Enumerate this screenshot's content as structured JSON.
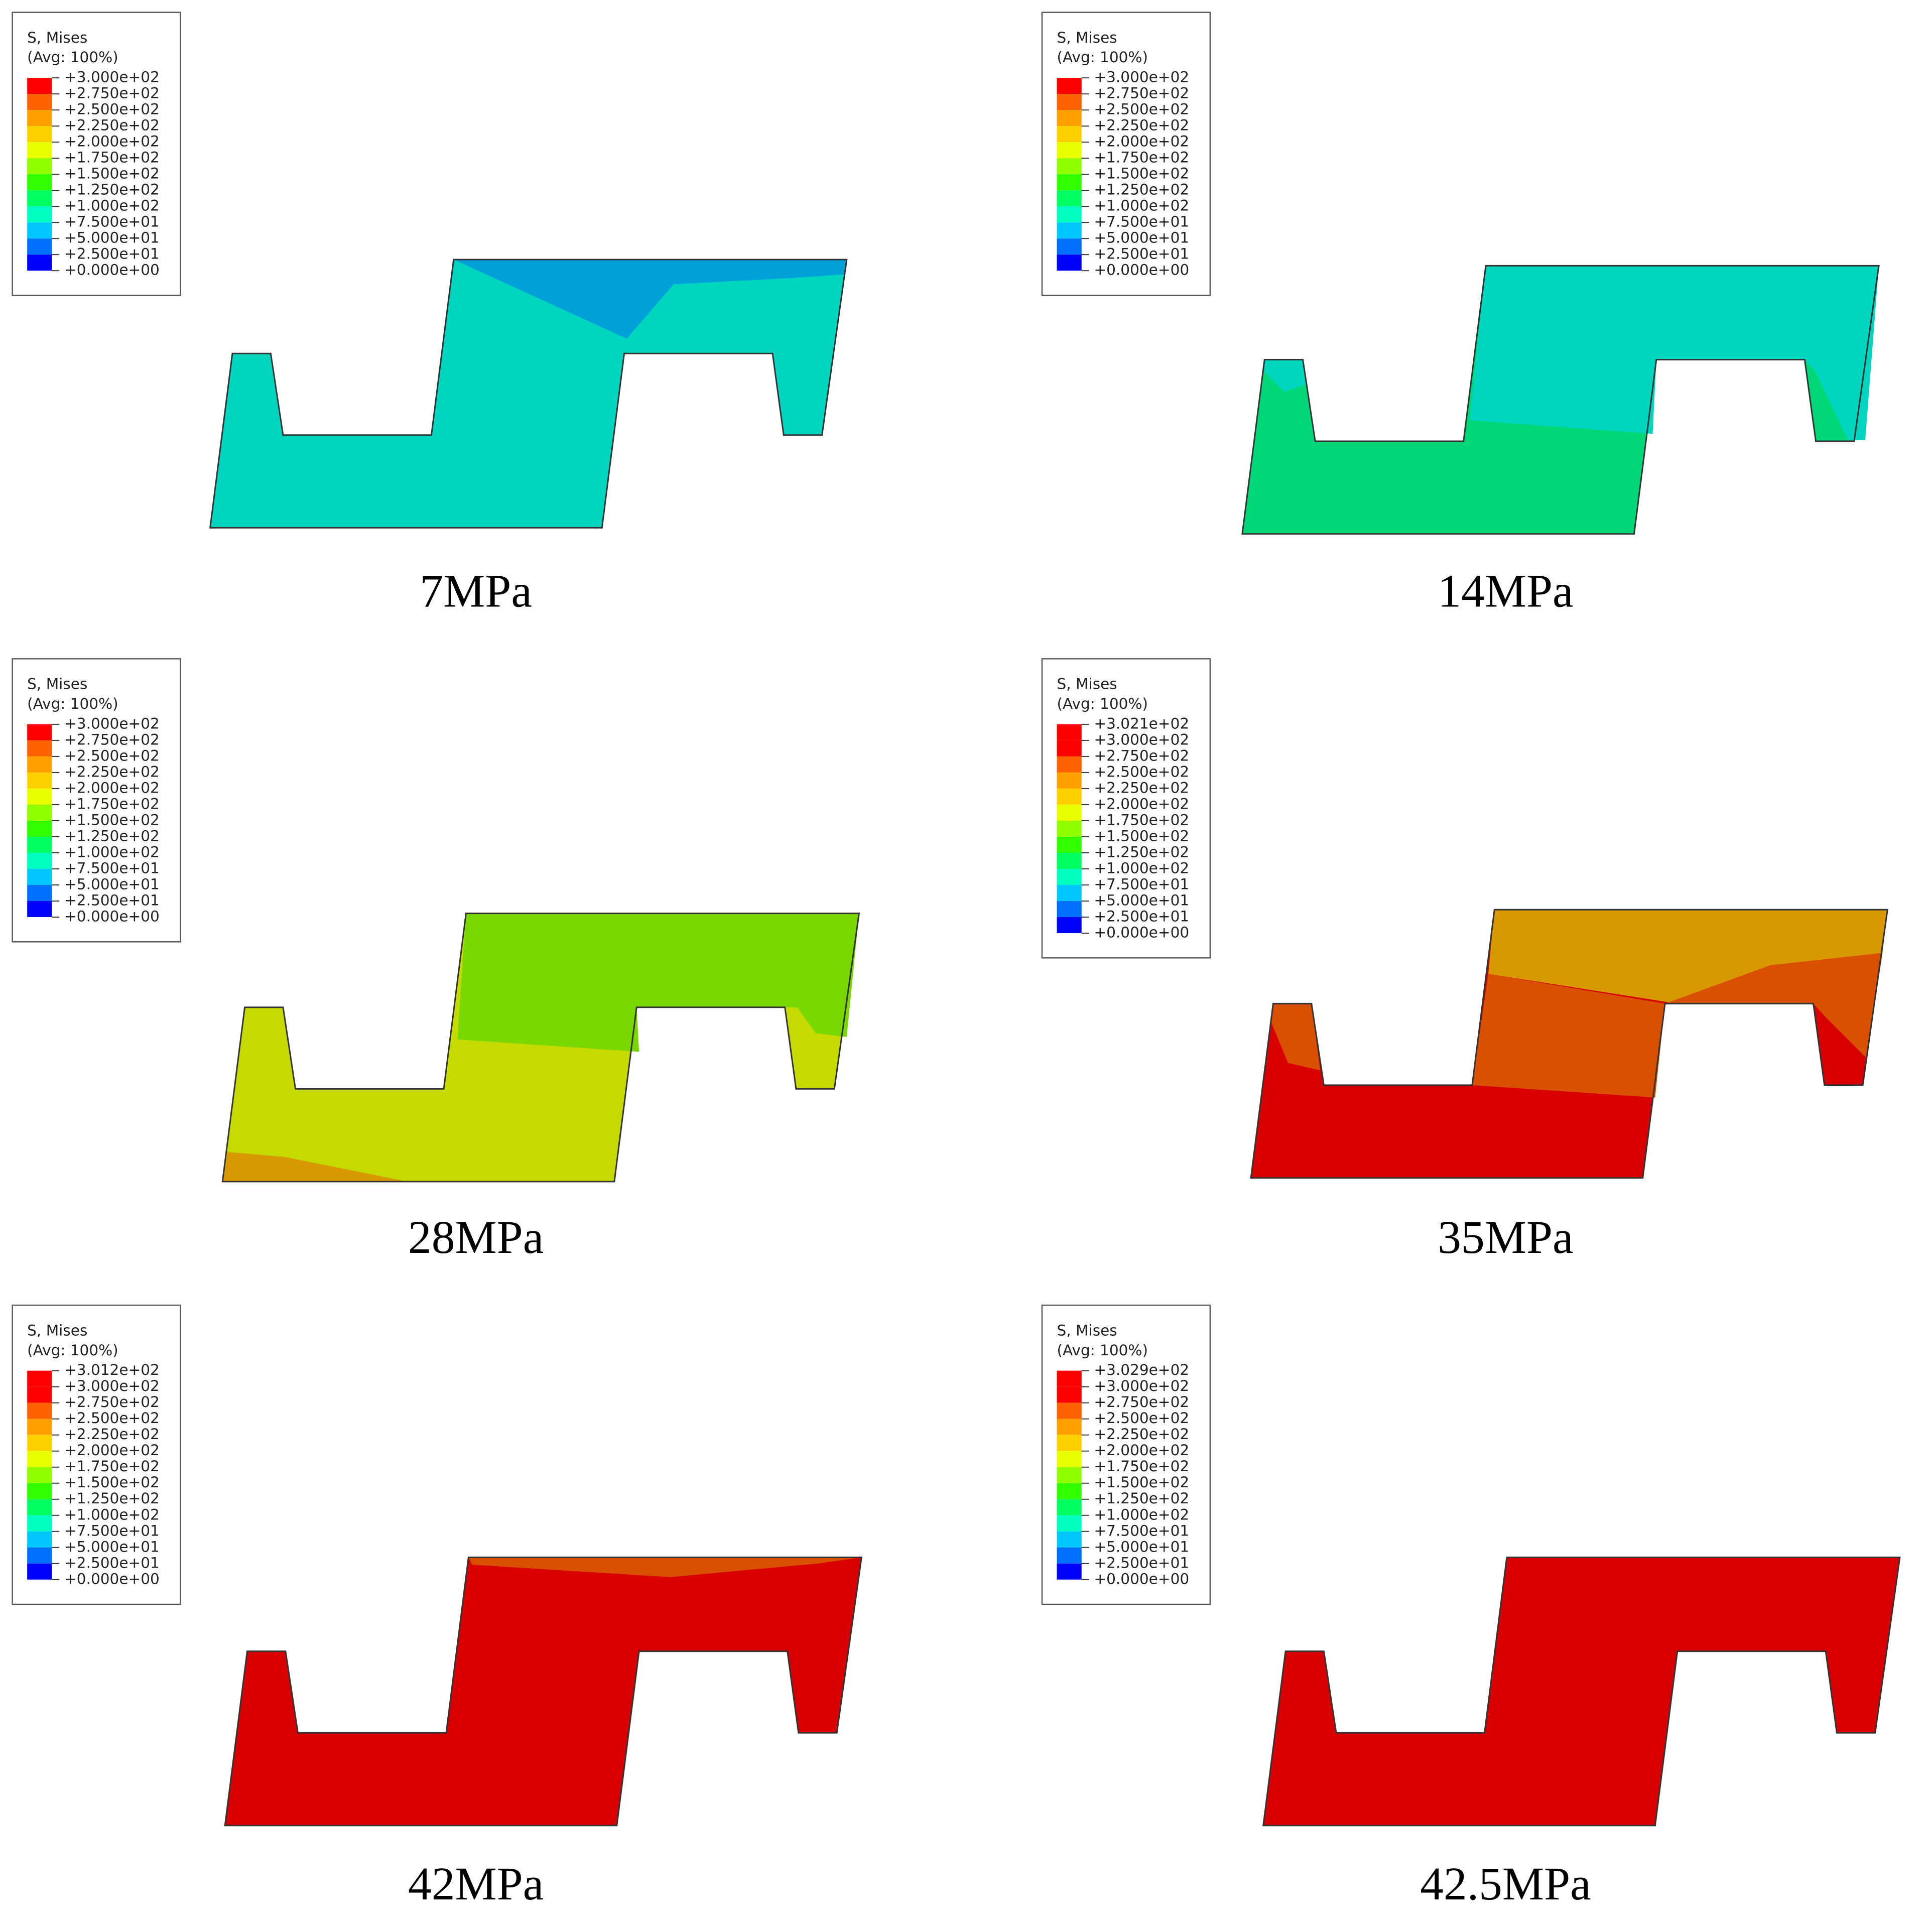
{
  "panels": [
    {
      "legend_title": "S, Mises",
      "legend_subtitle": "(Avg: 100%)",
      "legend_labels": [
        "+3.000e+02",
        "+2.750e+02",
        "+2.500e+02",
        "+2.250e+02",
        "+2.000e+02",
        "+1.750e+02",
        "+1.500e+02",
        "+1.250e+02",
        "+1.000e+02",
        "+7.500e+01",
        "+5.000e+01",
        "+2.500e+01",
        "+0.000e+00"
      ],
      "caption": "7MPa"
    },
    {
      "legend_title": "S, Mises",
      "legend_subtitle": "(Avg: 100%)",
      "legend_labels": [
        "+3.000e+02",
        "+2.750e+02",
        "+2.500e+02",
        "+2.250e+02",
        "+2.000e+02",
        "+1.750e+02",
        "+1.500e+02",
        "+1.250e+02",
        "+1.000e+02",
        "+7.500e+01",
        "+5.000e+01",
        "+2.500e+01",
        "+0.000e+00"
      ],
      "caption": "14MPa"
    },
    {
      "legend_title": "S, Mises",
      "legend_subtitle": "(Avg: 100%)",
      "legend_labels": [
        "+3.000e+02",
        "+2.750e+02",
        "+2.500e+02",
        "+2.250e+02",
        "+2.000e+02",
        "+1.750e+02",
        "+1.500e+02",
        "+1.250e+02",
        "+1.000e+02",
        "+7.500e+01",
        "+5.000e+01",
        "+2.500e+01",
        "+0.000e+00"
      ],
      "caption": "28MPa"
    },
    {
      "legend_title": "S, Mises",
      "legend_subtitle": "(Avg: 100%)",
      "legend_labels": [
        "+3.021e+02",
        "+3.000e+02",
        "+2.750e+02",
        "+2.500e+02",
        "+2.250e+02",
        "+2.000e+02",
        "+1.750e+02",
        "+1.500e+02",
        "+1.250e+02",
        "+1.000e+02",
        "+7.500e+01",
        "+5.000e+01",
        "+2.500e+01",
        "+0.000e+00"
      ],
      "caption": "35MPa"
    },
    {
      "legend_title": "S, Mises",
      "legend_subtitle": "(Avg: 100%)",
      "legend_labels": [
        "+3.012e+02",
        "+3.000e+02",
        "+2.750e+02",
        "+2.500e+02",
        "+2.250e+02",
        "+2.000e+02",
        "+1.750e+02",
        "+1.500e+02",
        "+1.250e+02",
        "+1.000e+02",
        "+7.500e+01",
        "+5.000e+01",
        "+2.500e+01",
        "+0.000e+00"
      ],
      "caption": "42MPa"
    },
    {
      "legend_title": "S, Mises",
      "legend_subtitle": "(Avg: 100%)",
      "legend_labels": [
        "+3.029e+02",
        "+3.000e+02",
        "+2.750e+02",
        "+2.500e+02",
        "+2.250e+02",
        "+2.000e+02",
        "+1.750e+02",
        "+1.500e+02",
        "+1.250e+02",
        "+1.000e+02",
        "+7.500e+01",
        "+5.000e+01",
        "+2.500e+01",
        "+0.000e+00"
      ],
      "caption": "42.5MPa"
    }
  ]
}
